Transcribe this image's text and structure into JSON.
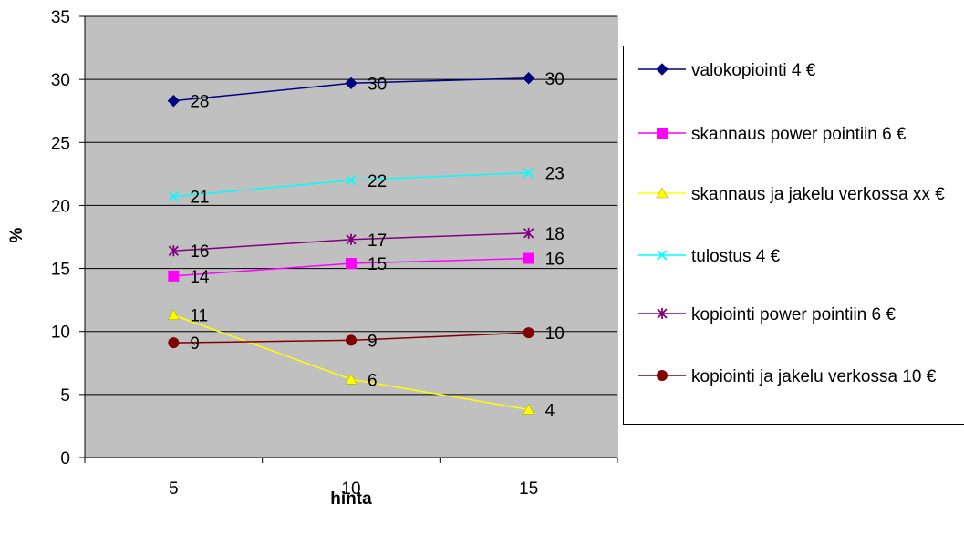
{
  "chart_data": {
    "type": "line",
    "title": "",
    "xlabel": "hinta",
    "ylabel": "%",
    "x": [
      5,
      10,
      15
    ],
    "x_tick_labels": [
      "5",
      "10",
      "15"
    ],
    "ylim": [
      0,
      35
    ],
    "y_ticks": [
      0,
      5,
      10,
      15,
      20,
      25,
      30,
      35
    ],
    "y_tick_labels": [
      "0",
      "5",
      "10",
      "15",
      "20",
      "25",
      "30",
      "35"
    ],
    "grid": "horizontal",
    "plot_background": "#c0c0c0",
    "legend_position": "right",
    "series": [
      {
        "name": "valokopiointi 4 €",
        "values": [
          28.3,
          29.7,
          30.1
        ],
        "labels": [
          "28",
          "30",
          "30"
        ],
        "color": "#000080",
        "marker": "diamond"
      },
      {
        "name": "skannaus power pointiin 6 €",
        "values": [
          14.4,
          15.4,
          15.8
        ],
        "labels": [
          "14",
          "15",
          "16"
        ],
        "color": "#ff00ff",
        "marker": "square"
      },
      {
        "name": "skannaus ja jakelu verkossa xx €",
        "values": [
          11.3,
          6.2,
          3.8
        ],
        "labels": [
          "11",
          "6",
          "4"
        ],
        "color": "#ffff00",
        "marker": "triangle"
      },
      {
        "name": "tulostus 4 €",
        "values": [
          20.7,
          22.0,
          22.6
        ],
        "labels": [
          "21",
          "22",
          "23"
        ],
        "color": "#00ffff",
        "marker": "x"
      },
      {
        "name": "kopiointi power pointiin 6 €",
        "values": [
          16.4,
          17.3,
          17.8
        ],
        "labels": [
          "16",
          "17",
          "18"
        ],
        "color": "#800080",
        "marker": "star"
      },
      {
        "name": "kopiointi ja jakelu verkossa 10 €",
        "values": [
          9.1,
          9.3,
          9.9
        ],
        "labels": [
          "9",
          "9",
          "10"
        ],
        "color": "#800000",
        "marker": "circle"
      }
    ]
  }
}
